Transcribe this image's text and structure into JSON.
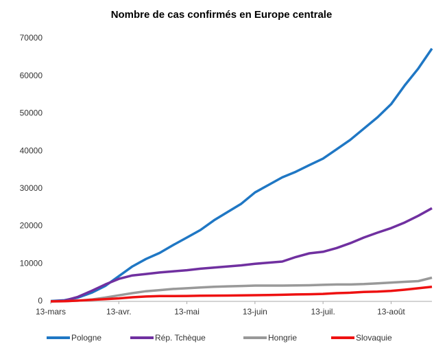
{
  "chart_data": {
    "type": "line",
    "title": "Nombre de cas confirmés en Europe centrale",
    "categories": [
      "13-mars",
      null,
      null,
      null,
      null,
      "13-avr.",
      null,
      null,
      null,
      null,
      "13-mai",
      null,
      null,
      null,
      null,
      "13-juin",
      null,
      null,
      null,
      null,
      "13-juil.",
      null,
      null,
      null,
      null,
      "13-août",
      null,
      null,
      null
    ],
    "series": [
      {
        "name": "Pologne",
        "color": "#1f77c4",
        "values": [
          100,
          300,
          1000,
          2300,
          4100,
          6700,
          9300,
          11300,
          12900,
          15000,
          17000,
          19000,
          21600,
          23800,
          26000,
          29000,
          31000,
          33000,
          34500,
          36300,
          38000,
          40500,
          43000,
          46000,
          49000,
          52500,
          57500,
          62000,
          67300
        ]
      },
      {
        "name": "Rép. Tchèque",
        "color": "#7030a0",
        "values": [
          0,
          200,
          1200,
          2800,
          4500,
          6000,
          6900,
          7300,
          7700,
          8000,
          8300,
          8700,
          9000,
          9300,
          9600,
          10000,
          10300,
          10600,
          11800,
          12800,
          13200,
          14200,
          15500,
          17000,
          18300,
          19500,
          21000,
          22800,
          24800
        ]
      },
      {
        "name": "Hongrie",
        "color": "#999999",
        "values": [
          0,
          50,
          200,
          500,
          1000,
          1600,
          2200,
          2700,
          3000,
          3300,
          3500,
          3700,
          3900,
          4000,
          4100,
          4200,
          4200,
          4200,
          4250,
          4300,
          4400,
          4500,
          4500,
          4600,
          4800,
          5000,
          5200,
          5400,
          6300
        ]
      },
      {
        "name": "Slovaquie",
        "color": "#ee1111",
        "values": [
          0,
          30,
          200,
          400,
          600,
          800,
          1100,
          1300,
          1400,
          1400,
          1450,
          1500,
          1530,
          1550,
          1600,
          1650,
          1700,
          1750,
          1850,
          1900,
          2000,
          2200,
          2300,
          2500,
          2600,
          2800,
          3100,
          3500,
          3900
        ]
      }
    ],
    "ylim": [
      0,
      70000
    ],
    "yticks": [
      0,
      10000,
      20000,
      30000,
      40000,
      50000,
      60000,
      70000
    ],
    "grid": false,
    "legend": "bottom"
  }
}
